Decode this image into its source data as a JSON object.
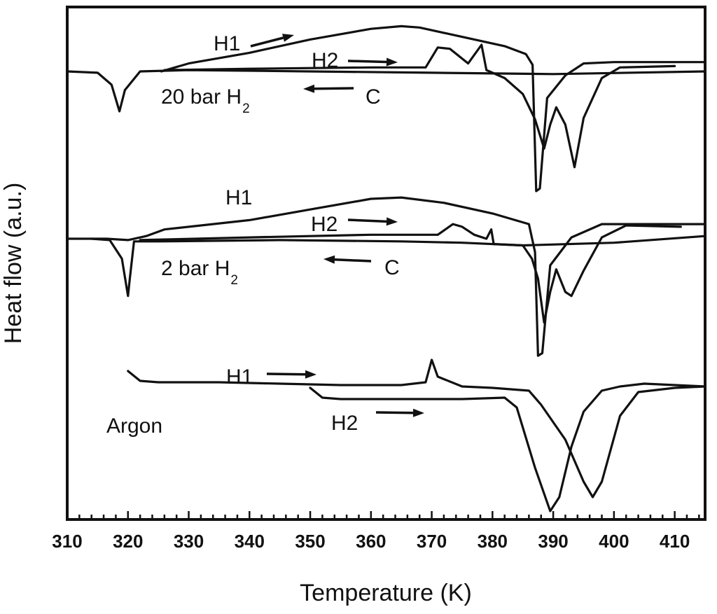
{
  "chart_data": {
    "type": "line",
    "title": "",
    "xlabel": "Temperature (K)",
    "ylabel": "Heat flow (a.u.)",
    "xlim": [
      310,
      415
    ],
    "x_ticks": [
      "310",
      "320",
      "330",
      "340",
      "350",
      "360",
      "370",
      "380",
      "390",
      "400",
      "410"
    ],
    "y_ticks_labeled": false,
    "grid": false,
    "legend": "none",
    "groups": [
      {
        "label": "20 bar H",
        "label_subscript": "2",
        "curves": [
          {
            "name": "H1",
            "points": [
              [
                325.5,
                0.0
              ],
              [
                330,
                -0.06
              ],
              [
                340,
                -0.14
              ],
              [
                350,
                -0.24
              ],
              [
                360,
                -0.32
              ],
              [
                365,
                -0.34
              ],
              [
                368,
                -0.33
              ],
              [
                372,
                -0.29
              ],
              [
                378,
                -0.23
              ],
              [
                382,
                -0.19
              ],
              [
                385.5,
                -0.13
              ],
              [
                386.6,
                -0.05
              ],
              [
                387.2,
                0.9
              ],
              [
                387.8,
                0.88
              ],
              [
                389,
                0.2
              ],
              [
                392,
                0.03
              ],
              [
                395,
                -0.06
              ],
              [
                400,
                -0.07
              ],
              [
                415,
                -0.07
              ]
            ]
          },
          {
            "name": "H2",
            "points": [
              [
                326,
                -0.01
              ],
              [
                340,
                -0.02
              ],
              [
                360,
                -0.03
              ],
              [
                369,
                -0.03
              ],
              [
                371,
                -0.18
              ],
              [
                373,
                -0.17
              ],
              [
                376,
                -0.06
              ],
              [
                378.2,
                -0.2
              ],
              [
                379,
                -0.01
              ],
              [
                382,
                0.05
              ],
              [
                385,
                0.17
              ],
              [
                387,
                0.36
              ],
              [
                388.5,
                0.58
              ],
              [
                389.5,
                0.4
              ],
              [
                390.5,
                0.27
              ],
              [
                392,
                0.4
              ],
              [
                393.5,
                0.72
              ],
              [
                395,
                0.35
              ],
              [
                398,
                0.05
              ],
              [
                401,
                -0.03
              ],
              [
                410,
                -0.04
              ]
            ]
          },
          {
            "name": "C",
            "points": [
              [
                415,
                0.0
              ],
              [
                390,
                0.02
              ],
              [
                370,
                0.01
              ],
              [
                350,
                0.0
              ],
              [
                330,
                -0.01
              ],
              [
                322,
                0.0
              ],
              [
                319.5,
                0.14
              ],
              [
                318.6,
                0.3
              ],
              [
                317.3,
                0.1
              ],
              [
                315,
                0.01
              ],
              [
                310,
                0.0
              ]
            ]
          }
        ]
      },
      {
        "label": "2 bar H",
        "label_subscript": "2",
        "curves": [
          {
            "name": "H1",
            "points": [
              [
                310,
                0.0
              ],
              [
                316.5,
                0.0
              ],
              [
                320,
                0.01
              ],
              [
                323,
                -0.02
              ],
              [
                326,
                -0.07
              ],
              [
                340,
                -0.14
              ],
              [
                350,
                -0.22
              ],
              [
                360,
                -0.3
              ],
              [
                365,
                -0.31
              ],
              [
                372,
                -0.27
              ],
              [
                380,
                -0.19
              ],
              [
                386,
                -0.11
              ],
              [
                387,
                0.1
              ],
              [
                387.5,
                0.88
              ],
              [
                388.2,
                0.86
              ],
              [
                389.5,
                0.2
              ],
              [
                393,
                -0.01
              ],
              [
                398,
                -0.11
              ],
              [
                410,
                -0.11
              ],
              [
                415,
                -0.11
              ]
            ]
          },
          {
            "name": "H2",
            "points": [
              [
                322,
                0.01
              ],
              [
                340,
                -0.01
              ],
              [
                360,
                -0.03
              ],
              [
                371,
                -0.03
              ],
              [
                373.5,
                -0.11
              ],
              [
                375,
                -0.09
              ],
              [
                377,
                -0.03
              ],
              [
                379,
                0.0
              ],
              [
                379.8,
                -0.07
              ],
              [
                380.2,
                0.04
              ],
              [
                385,
                0.05
              ],
              [
                386.5,
                0.15
              ],
              [
                387.5,
                0.3
              ],
              [
                388.5,
                0.63
              ],
              [
                389.5,
                0.4
              ],
              [
                390.5,
                0.23
              ],
              [
                392,
                0.4
              ],
              [
                393,
                0.43
              ],
              [
                395,
                0.24
              ],
              [
                398,
                -0.01
              ],
              [
                402,
                -0.1
              ],
              [
                411,
                -0.09
              ]
            ]
          },
          {
            "name": "C",
            "points": [
              [
                415,
                -0.02
              ],
              [
                400,
                0.03
              ],
              [
                385,
                0.05
              ],
              [
                375,
                0.03
              ],
              [
                365,
                0.02
              ],
              [
                345,
                0.01
              ],
              [
                325,
                0.02
              ],
              [
                321,
                0.02
              ],
              [
                320.3,
                0.3
              ],
              [
                320,
                0.43
              ],
              [
                319,
                0.15
              ],
              [
                317,
                0.01
              ],
              [
                314,
                0.0
              ]
            ]
          }
        ]
      },
      {
        "label": "Argon",
        "curves": [
          {
            "name": "H1",
            "points": [
              [
                320,
                -0.14
              ],
              [
                322,
                -0.07
              ],
              [
                325,
                -0.06
              ],
              [
                335,
                -0.06
              ],
              [
                345,
                -0.05
              ],
              [
                355,
                -0.04
              ],
              [
                365,
                -0.04
              ],
              [
                369,
                -0.06
              ],
              [
                370,
                -0.22
              ],
              [
                371,
                -0.1
              ],
              [
                375,
                -0.03
              ],
              [
                380,
                -0.02
              ],
              [
                386,
                0.0
              ],
              [
                388,
                0.1
              ],
              [
                392,
                0.35
              ],
              [
                395,
                0.65
              ],
              [
                396.5,
                0.76
              ],
              [
                398,
                0.65
              ],
              [
                401,
                0.18
              ],
              [
                404,
                0.01
              ],
              [
                410,
                -0.02
              ],
              [
                415,
                -0.03
              ]
            ]
          },
          {
            "name": "H2",
            "points": [
              [
                350,
                -0.02
              ],
              [
                352,
                0.05
              ],
              [
                355,
                0.06
              ],
              [
                365,
                0.06
              ],
              [
                375,
                0.06
              ],
              [
                382,
                0.05
              ],
              [
                384,
                0.12
              ],
              [
                387,
                0.55
              ],
              [
                389.5,
                0.86
              ],
              [
                391,
                0.76
              ],
              [
                393,
                0.4
              ],
              [
                395,
                0.15
              ],
              [
                398,
                0.0
              ],
              [
                401,
                -0.03
              ],
              [
                405,
                -0.05
              ],
              [
                410,
                -0.04
              ],
              [
                415,
                -0.03
              ]
            ]
          }
        ]
      }
    ],
    "arrow_labels": [
      {
        "group": 0,
        "text": "H1",
        "direction": "right"
      },
      {
        "group": 0,
        "text": "H2",
        "direction": "right"
      },
      {
        "group": 0,
        "text": "C",
        "direction": "left"
      },
      {
        "group": 1,
        "text": "H1",
        "direction": "none"
      },
      {
        "group": 1,
        "text": "H2",
        "direction": "right"
      },
      {
        "group": 1,
        "text": "C",
        "direction": "left"
      },
      {
        "group": 2,
        "text": "H1",
        "direction": "right"
      },
      {
        "group": 2,
        "text": "H2",
        "direction": "right"
      }
    ]
  }
}
